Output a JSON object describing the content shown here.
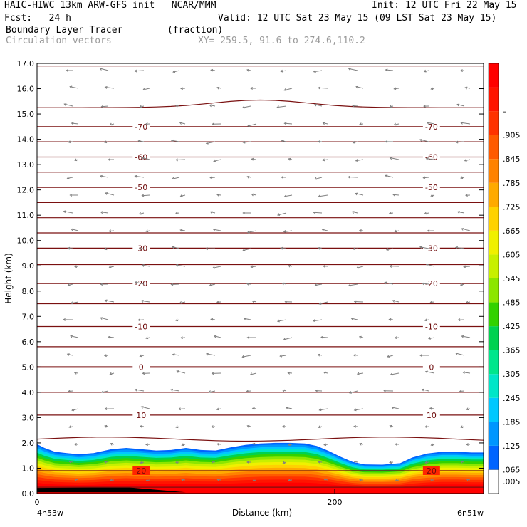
{
  "header": {
    "model_line": "HAIC-HIWC 13km ARW-GFS init   NCAR/MMM",
    "init_line": "Init: 12 UTC Fri 22 May 15",
    "fcst_label": "Fcst:   24 h",
    "valid_line": "Valid: 12 UTC Sat 23 May 15 (09 LST Sat 23 May 15)",
    "field_line": "Boundary Layer Tracer        (fraction)",
    "vectors_line": "Circulation vectors",
    "xy_line": "XY= 259.5, 91.6 to 274.6,110.2"
  },
  "chart_data": {
    "type": "heatmap",
    "title": "Boundary Layer Tracer",
    "units": "(fraction)",
    "xlabel": "Distance (km)",
    "ylabel": "Height (km)",
    "xlim": [
      0,
      300
    ],
    "ylim": [
      0,
      17
    ],
    "x_ticks": [
      "0",
      "200"
    ],
    "y_ticks": [
      "0.0",
      "1.0",
      "2.0",
      "3.0",
      "4.0",
      "5.0",
      "6.0",
      "7.0",
      "8.0",
      "9.0",
      "10.0",
      "11.0",
      "12.0",
      "13.0",
      "14.0",
      "15.0",
      "16.0",
      "17.0"
    ],
    "x_endpoints": {
      "left": "4n53w",
      "right": "6n51w"
    },
    "colorbar": {
      "labels": [
        ".005",
        ".065",
        ".125",
        ".185",
        ".245",
        ".305",
        ".365",
        ".425",
        ".485",
        ".545",
        ".605",
        ".665",
        ".725",
        ".785",
        ".845",
        ".905",
        "–"
      ],
      "colors": [
        "#ffffff",
        "#0064ff",
        "#0096ff",
        "#00c8ff",
        "#00e6c8",
        "#00e68c",
        "#00d250",
        "#32d200",
        "#8ce600",
        "#c8f000",
        "#f0f000",
        "#ffd200",
        "#ffaa00",
        "#ff8200",
        "#ff5a00",
        "#ff3200",
        "#ff1400",
        "#ff0000"
      ]
    },
    "tracer_top_km": [
      [
        0,
        1.95
      ],
      [
        5,
        1.8
      ],
      [
        12,
        1.65
      ],
      [
        20,
        1.6
      ],
      [
        28,
        1.55
      ],
      [
        38,
        1.6
      ],
      [
        50,
        1.75
      ],
      [
        60,
        1.8
      ],
      [
        70,
        1.75
      ],
      [
        80,
        1.7
      ],
      [
        90,
        1.72
      ],
      [
        100,
        1.8
      ],
      [
        110,
        1.72
      ],
      [
        120,
        1.7
      ],
      [
        130,
        1.82
      ],
      [
        140,
        1.92
      ],
      [
        150,
        1.98
      ],
      [
        160,
        2.0
      ],
      [
        170,
        2.0
      ],
      [
        180,
        1.98
      ],
      [
        188,
        1.88
      ],
      [
        196,
        1.68
      ],
      [
        204,
        1.45
      ],
      [
        212,
        1.25
      ],
      [
        220,
        1.15
      ],
      [
        232,
        1.14
      ],
      [
        244,
        1.2
      ],
      [
        252,
        1.42
      ],
      [
        262,
        1.58
      ],
      [
        272,
        1.65
      ],
      [
        282,
        1.65
      ],
      [
        292,
        1.62
      ],
      [
        300,
        1.62
      ]
    ],
    "temperature_contours_C": [
      {
        "label": "-70",
        "height_km": 14.5
      },
      {
        "label": "-60",
        "height_km": 13.3
      },
      {
        "label": "-50",
        "height_km": 12.1
      },
      {
        "label": "-30",
        "height_km": 9.7
      },
      {
        "label": "-20",
        "height_km": 8.3
      },
      {
        "label": "-10",
        "height_km": 6.6
      },
      {
        "label": "0",
        "height_km": 5.0
      },
      {
        "label": "10",
        "height_km": 3.1
      },
      {
        "label": "20",
        "height_km": 0.9
      }
    ],
    "unlabeled_contour_heights_km": [
      16.9,
      15.25,
      13.9,
      12.7,
      11.5,
      10.9,
      10.3,
      9.05,
      7.5,
      5.8,
      4.0,
      2.15,
      0.25
    ],
    "vectors": "circulation wind vectors (gray arrows), predominantly westward in the upper troposphere"
  }
}
